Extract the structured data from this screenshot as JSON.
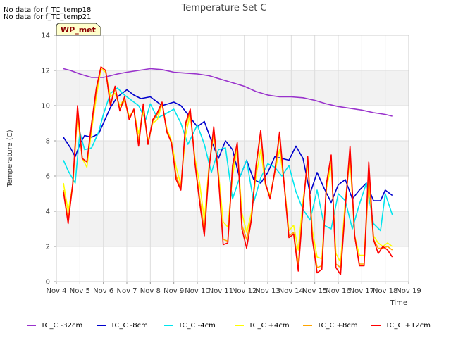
{
  "no_data_messages": [
    "No data for f_TC_temp18",
    "No data for f_TC_temp21"
  ],
  "badge": "WP_met",
  "chart_data": {
    "type": "line",
    "title": "Temperature Set C",
    "xlabel": "Time",
    "ylabel": "Temperature (C)",
    "xlim": [
      4,
      19
    ],
    "ylim": [
      0,
      14
    ],
    "x_tick_values": [
      4,
      5,
      6,
      7,
      8,
      9,
      10,
      11,
      12,
      13,
      14,
      15,
      16,
      17,
      18,
      19
    ],
    "x_tick_labels": [
      "Nov 4",
      "Nov 5",
      "Nov 6",
      "Nov 7",
      "Nov 8",
      "Nov 9",
      "Nov 10",
      "Nov 11",
      "Nov 12",
      "Nov 13",
      "Nov 14",
      "Nov 15",
      "Nov 16",
      "Nov 17",
      "Nov 18",
      "Nov 19"
    ],
    "y_ticks": [
      0,
      2,
      4,
      6,
      8,
      10,
      12,
      14
    ],
    "grid": true,
    "banded_background": true,
    "legend_position": "bottom",
    "series": [
      {
        "name": "TC_C -32cm",
        "color": "#9932cc",
        "x": [
          4.3,
          4.6,
          5.0,
          5.5,
          6.0,
          6.3,
          6.6,
          7.0,
          7.5,
          8.0,
          8.5,
          9.0,
          9.5,
          10.0,
          10.5,
          11.0,
          11.5,
          12.0,
          12.5,
          13.0,
          13.5,
          14.0,
          14.5,
          15.0,
          15.5,
          16.0,
          16.5,
          17.0,
          17.5,
          18.0,
          18.3
        ],
        "y": [
          12.1,
          12.0,
          11.8,
          11.6,
          11.6,
          11.7,
          11.8,
          11.9,
          12.0,
          12.1,
          12.05,
          11.9,
          11.85,
          11.8,
          11.7,
          11.5,
          11.3,
          11.1,
          10.8,
          10.6,
          10.5,
          10.5,
          10.45,
          10.3,
          10.1,
          9.95,
          9.85,
          9.75,
          9.6,
          9.5,
          9.4
        ]
      },
      {
        "name": "TC_C -8cm",
        "color": "#0000cd",
        "x": [
          4.3,
          4.6,
          4.8,
          5.0,
          5.2,
          5.5,
          5.8,
          6.0,
          6.3,
          6.6,
          7.0,
          7.3,
          7.6,
          8.0,
          8.5,
          9.0,
          9.3,
          9.6,
          10.0,
          10.3,
          10.6,
          10.9,
          11.2,
          11.5,
          11.8,
          12.1,
          12.4,
          12.7,
          13.0,
          13.3,
          13.6,
          13.9,
          14.2,
          14.5,
          14.8,
          15.1,
          15.4,
          15.7,
          16.0,
          16.3,
          16.6,
          16.9,
          17.2,
          17.5,
          17.8,
          18.0,
          18.3
        ],
        "y": [
          8.2,
          7.6,
          7.1,
          7.8,
          8.3,
          8.2,
          8.4,
          9.0,
          9.9,
          10.5,
          10.9,
          10.6,
          10.4,
          10.5,
          10.0,
          10.2,
          10.0,
          9.5,
          8.8,
          9.1,
          8.0,
          7.0,
          8.0,
          7.5,
          5.9,
          6.9,
          5.8,
          5.6,
          6.2,
          7.1,
          7.0,
          6.9,
          7.7,
          7.0,
          5.0,
          6.2,
          5.3,
          4.5,
          5.5,
          5.8,
          4.7,
          5.2,
          5.6,
          4.6,
          4.6,
          5.2,
          4.9
        ]
      },
      {
        "name": "TC_C -4cm",
        "color": "#00e5ee",
        "x": [
          4.3,
          4.5,
          4.8,
          5.0,
          5.2,
          5.5,
          5.8,
          6.0,
          6.3,
          6.6,
          6.9,
          7.2,
          7.5,
          7.8,
          8.0,
          8.3,
          8.6,
          9.0,
          9.3,
          9.6,
          10.0,
          10.3,
          10.6,
          10.9,
          11.2,
          11.5,
          11.8,
          12.1,
          12.4,
          12.7,
          13.0,
          13.3,
          13.6,
          13.9,
          14.2,
          14.5,
          14.8,
          15.1,
          15.4,
          15.7,
          16.0,
          16.3,
          16.6,
          16.9,
          17.2,
          17.5,
          17.8,
          18.0,
          18.3
        ],
        "y": [
          6.9,
          6.3,
          5.6,
          8.5,
          7.5,
          7.6,
          8.5,
          9.5,
          10.7,
          11.0,
          10.6,
          10.3,
          10.0,
          9.2,
          10.1,
          9.3,
          9.5,
          9.8,
          9.0,
          7.8,
          8.9,
          7.8,
          6.2,
          7.5,
          7.6,
          4.7,
          5.9,
          6.9,
          4.5,
          5.9,
          6.7,
          6.5,
          6.0,
          6.6,
          5.1,
          4.1,
          3.5,
          5.2,
          3.2,
          3.0,
          5.0,
          4.6,
          3.0,
          4.4,
          5.6,
          3.3,
          2.9,
          5.0,
          3.8
        ]
      },
      {
        "name": "TC_C +4cm",
        "color": "#ffff00",
        "x": [
          4.3,
          4.5,
          4.7,
          4.9,
          5.1,
          5.3,
          5.5,
          5.7,
          5.9,
          6.1,
          6.3,
          6.5,
          6.7,
          6.9,
          7.1,
          7.3,
          7.5,
          7.7,
          7.9,
          8.1,
          8.3,
          8.5,
          8.7,
          8.9,
          9.1,
          9.3,
          9.5,
          9.7,
          9.9,
          10.1,
          10.3,
          10.5,
          10.7,
          10.9,
          11.1,
          11.3,
          11.5,
          11.7,
          11.9,
          12.1,
          12.3,
          12.5,
          12.7,
          12.9,
          13.1,
          13.3,
          13.5,
          13.7,
          13.9,
          14.1,
          14.3,
          14.5,
          14.7,
          14.9,
          15.1,
          15.3,
          15.5,
          15.7,
          15.9,
          16.1,
          16.3,
          16.5,
          16.7,
          16.9,
          17.1,
          17.3,
          17.5,
          17.7,
          17.9,
          18.1,
          18.3
        ],
        "y": [
          5.6,
          4.0,
          5.5,
          9.5,
          7.0,
          6.5,
          8.6,
          10.5,
          12.1,
          11.9,
          10.5,
          10.7,
          10.0,
          10.4,
          9.4,
          9.7,
          8.4,
          9.7,
          8.0,
          9.0,
          9.2,
          10.1,
          8.7,
          8.0,
          6.5,
          5.5,
          8.3,
          9.5,
          7.0,
          5.6,
          3.5,
          6.6,
          8.4,
          6.2,
          3.4,
          3.1,
          6.0,
          7.6,
          3.9,
          2.8,
          3.9,
          6.0,
          7.5,
          5.5,
          4.9,
          6.2,
          7.5,
          5.6,
          2.9,
          3.2,
          1.8,
          4.6,
          6.7,
          2.9,
          1.4,
          1.3,
          5.3,
          6.6,
          1.6,
          1.1,
          4.6,
          7.0,
          2.6,
          1.5,
          1.5,
          5.7,
          2.6,
          2.2,
          2.0,
          2.2,
          2.0
        ]
      },
      {
        "name": "TC_C +8cm",
        "color": "#ffa500",
        "x": [
          4.3,
          4.5,
          4.7,
          4.9,
          5.1,
          5.3,
          5.5,
          5.7,
          5.9,
          6.1,
          6.3,
          6.5,
          6.7,
          6.9,
          7.1,
          7.3,
          7.5,
          7.7,
          7.9,
          8.1,
          8.3,
          8.5,
          8.7,
          8.9,
          9.1,
          9.3,
          9.5,
          9.7,
          9.9,
          10.1,
          10.3,
          10.5,
          10.7,
          10.9,
          11.1,
          11.3,
          11.5,
          11.7,
          11.9,
          12.1,
          12.3,
          12.5,
          12.7,
          12.9,
          13.1,
          13.3,
          13.5,
          13.7,
          13.9,
          14.1,
          14.3,
          14.5,
          14.7,
          14.9,
          15.1,
          15.3,
          15.5,
          15.7,
          15.9,
          16.1,
          16.3,
          16.5,
          16.7,
          16.9,
          17.1,
          17.3,
          17.5,
          17.7,
          17.9,
          18.1,
          18.3
        ],
        "y": [
          5.2,
          3.5,
          5.5,
          9.7,
          7.0,
          6.8,
          8.8,
          10.8,
          12.2,
          12.0,
          10.0,
          11.0,
          9.8,
          10.3,
          9.3,
          9.8,
          8.0,
          10.0,
          7.8,
          9.1,
          9.5,
          10.1,
          8.6,
          7.9,
          6.0,
          5.3,
          8.8,
          9.7,
          6.8,
          4.8,
          2.9,
          6.5,
          8.7,
          6.0,
          2.4,
          2.3,
          6.4,
          7.8,
          3.2,
          2.4,
          3.6,
          6.5,
          8.4,
          5.5,
          4.8,
          6.2,
          8.3,
          5.5,
          2.6,
          2.8,
          1.0,
          4.3,
          7.0,
          2.5,
          0.8,
          0.9,
          5.5,
          7.0,
          1.0,
          0.8,
          4.3,
          7.4,
          2.6,
          1.0,
          1.0,
          5.9,
          2.4,
          1.9,
          1.9,
          2.0,
          1.8
        ]
      },
      {
        "name": "TC_C +12cm",
        "color": "#ff0000",
        "x": [
          4.3,
          4.5,
          4.7,
          4.9,
          5.1,
          5.3,
          5.5,
          5.7,
          5.9,
          6.1,
          6.3,
          6.5,
          6.7,
          6.9,
          7.1,
          7.3,
          7.5,
          7.7,
          7.9,
          8.1,
          8.3,
          8.5,
          8.7,
          8.9,
          9.1,
          9.3,
          9.5,
          9.7,
          9.9,
          10.1,
          10.3,
          10.5,
          10.7,
          10.9,
          11.1,
          11.3,
          11.5,
          11.7,
          11.9,
          12.1,
          12.3,
          12.5,
          12.7,
          12.9,
          13.1,
          13.3,
          13.5,
          13.7,
          13.9,
          14.1,
          14.3,
          14.5,
          14.7,
          14.9,
          15.1,
          15.3,
          15.5,
          15.7,
          15.9,
          16.1,
          16.3,
          16.5,
          16.7,
          16.9,
          17.1,
          17.3,
          17.5,
          17.7,
          17.9,
          18.1,
          18.3
        ],
        "y": [
          5.1,
          3.3,
          5.6,
          10.0,
          7.0,
          6.8,
          9.0,
          11.0,
          12.2,
          12.0,
          10.0,
          11.1,
          9.7,
          10.5,
          9.2,
          9.8,
          7.7,
          10.1,
          7.8,
          9.2,
          9.6,
          10.2,
          8.5,
          7.9,
          5.8,
          5.2,
          9.0,
          9.8,
          6.7,
          4.5,
          2.6,
          6.4,
          8.8,
          5.9,
          2.1,
          2.2,
          6.6,
          7.9,
          3.0,
          1.9,
          3.5,
          6.6,
          8.6,
          5.6,
          4.7,
          6.3,
          8.5,
          5.5,
          2.5,
          2.7,
          0.6,
          4.2,
          7.1,
          2.4,
          0.5,
          0.7,
          5.6,
          7.2,
          0.8,
          0.4,
          4.2,
          7.7,
          2.6,
          0.9,
          0.9,
          6.8,
          2.4,
          1.6,
          2.0,
          1.8,
          1.4
        ]
      }
    ]
  }
}
